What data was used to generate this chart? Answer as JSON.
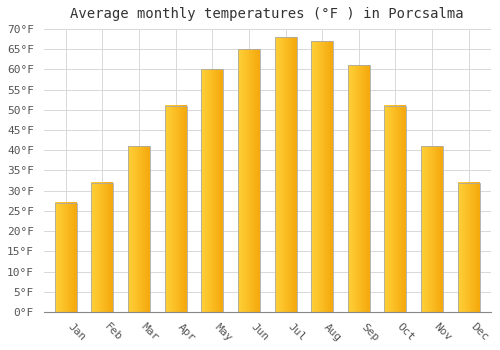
{
  "title": "Average monthly temperatures (°F ) in Porcsalma",
  "months": [
    "Jan",
    "Feb",
    "Mar",
    "Apr",
    "May",
    "Jun",
    "Jul",
    "Aug",
    "Sep",
    "Oct",
    "Nov",
    "Dec"
  ],
  "values": [
    27,
    32,
    41,
    51,
    60,
    65,
    68,
    67,
    61,
    51,
    41,
    32
  ],
  "bar_color_left": "#FFCC33",
  "bar_color_right": "#F5A800",
  "bar_edge_color": "#AAAAAA",
  "ylim": [
    0,
    70
  ],
  "ytick_step": 5,
  "background_color": "#ffffff",
  "grid_color": "#d8d8d8",
  "title_fontsize": 10,
  "tick_fontsize": 8,
  "font_family": "monospace",
  "bar_width": 0.6
}
